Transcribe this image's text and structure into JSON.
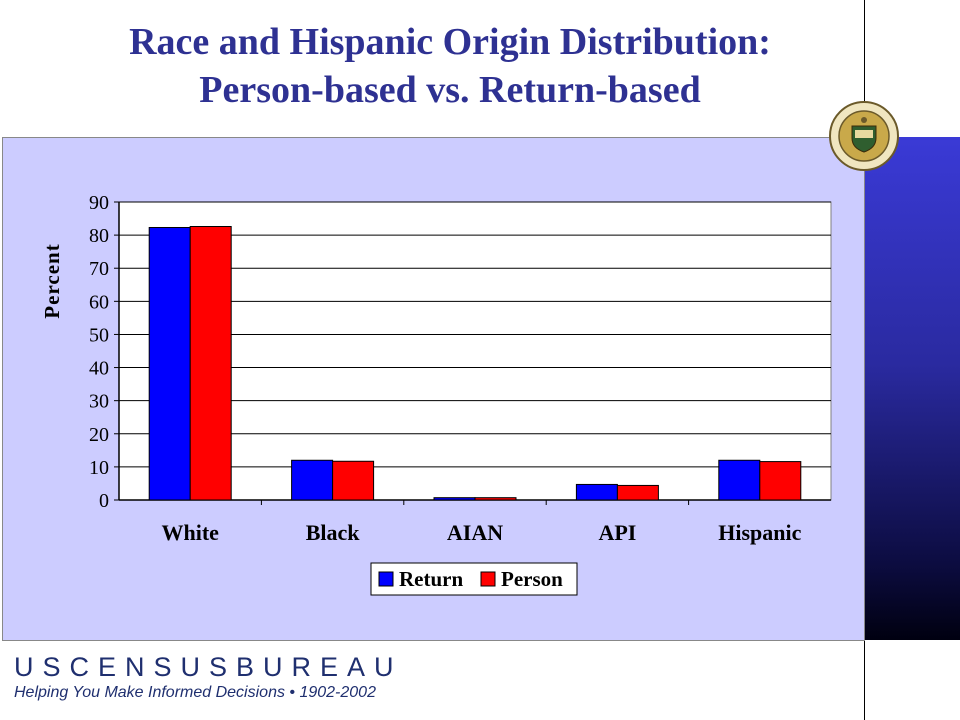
{
  "slide": {
    "title_line1": "Race and Hispanic Origin Distribution:",
    "title_line2": "Person-based vs. Return-based",
    "footer_logo": "USCENSUSBUREAU",
    "footer_tagline": "Helping You Make Informed Decisions • 1902-2002",
    "seal_icon": "us-department-of-commerce-seal-icon"
  },
  "colors": {
    "title": "#2e3192",
    "return": "#0000ff",
    "person": "#ff0000",
    "panel": "#ccccff"
  },
  "chart_data": {
    "type": "bar",
    "categories": [
      "White",
      "Black",
      "AIAN",
      "API",
      "Hispanic"
    ],
    "series": [
      {
        "name": "Return",
        "values": [
          82.3,
          12.0,
          0.7,
          4.7,
          12.0
        ]
      },
      {
        "name": "Person",
        "values": [
          82.6,
          11.7,
          0.7,
          4.4,
          11.6
        ]
      }
    ],
    "ylabel": "Percent",
    "ylim": [
      0,
      90
    ],
    "yticks": [
      0,
      10,
      20,
      30,
      40,
      50,
      60,
      70,
      80,
      90
    ],
    "grid": true,
    "legend": "bottom-center"
  }
}
